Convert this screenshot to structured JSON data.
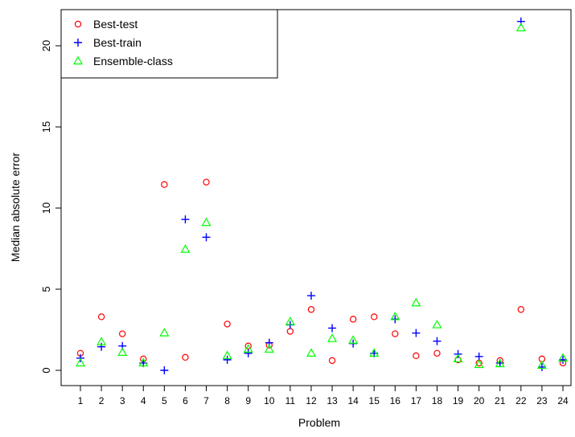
{
  "chart_data": {
    "type": "scatter",
    "xlabel": "Problem",
    "ylabel": "Median absolute error",
    "x": [
      1,
      2,
      3,
      4,
      5,
      6,
      7,
      8,
      9,
      10,
      11,
      12,
      13,
      14,
      15,
      16,
      17,
      18,
      19,
      20,
      21,
      22,
      23,
      24
    ],
    "xlim": [
      0.5,
      24.5
    ],
    "ylim": [
      0,
      22
    ],
    "yticks": [
      0,
      5,
      10,
      15,
      20
    ],
    "grid": false,
    "legend_position": "top-left",
    "series": [
      {
        "name": "Best-test",
        "marker": "circle",
        "color": "#ff0000",
        "values": [
          1.05,
          3.3,
          2.25,
          0.7,
          11.45,
          0.8,
          11.6,
          2.85,
          1.5,
          1.55,
          2.4,
          3.75,
          0.6,
          3.15,
          3.3,
          2.25,
          0.9,
          1.05,
          0.65,
          0.45,
          0.6,
          3.75,
          0.7,
          0.45
        ]
      },
      {
        "name": "Best-train",
        "marker": "plus",
        "color": "#0000ff",
        "values": [
          0.75,
          1.45,
          1.5,
          0.45,
          0.0,
          9.3,
          8.2,
          0.65,
          1.05,
          1.7,
          2.8,
          4.6,
          2.6,
          1.65,
          1.05,
          3.15,
          2.3,
          1.8,
          1.0,
          0.85,
          0.45,
          21.5,
          0.2,
          0.65
        ]
      },
      {
        "name": "Ensemble-class",
        "marker": "triangle",
        "color": "#00ff00",
        "values": [
          0.45,
          1.75,
          1.1,
          0.45,
          2.3,
          7.45,
          9.1,
          0.9,
          1.3,
          1.3,
          3.0,
          1.05,
          1.95,
          1.85,
          1.05,
          3.3,
          4.15,
          2.8,
          0.7,
          0.35,
          0.4,
          21.1,
          0.3,
          0.75
        ]
      }
    ]
  }
}
